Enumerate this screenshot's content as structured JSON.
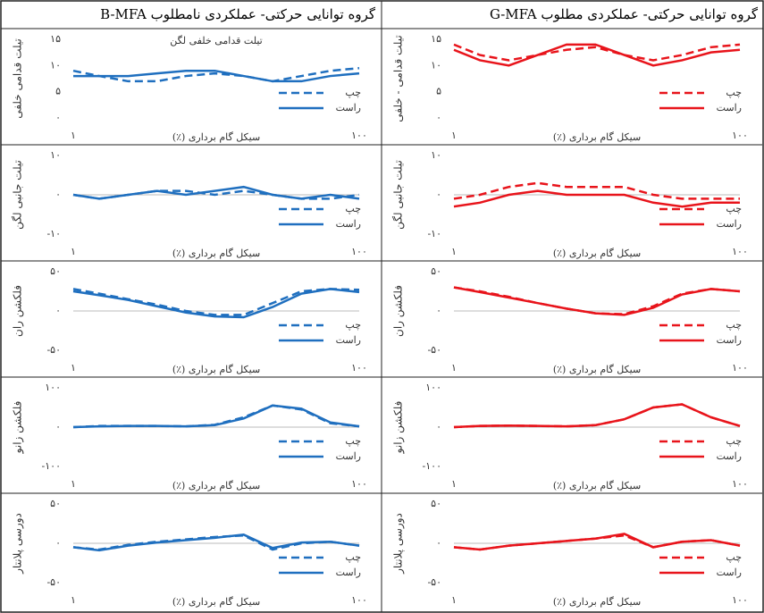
{
  "headers": [
    "گروه توانایی حرکتی- عملکردی نامطلوب B-MFA",
    "گروه توانایی حرکتی- عملکردی مطلوب G-MFA"
  ],
  "chart_data": [
    {
      "type": "line",
      "title": "تیلت قدامی خلفی لگن",
      "ylabel": "تیلت قدامی خلفی",
      "xlabel": "سیکل گام برداری (٪)",
      "xlim": [
        1,
        100
      ],
      "xticks": [
        {
          "value": 1,
          "label": "۱"
        },
        {
          "value": 100,
          "label": "۱۰۰"
        }
      ],
      "ylim": [
        0,
        15
      ],
      "yticks": [
        {
          "value": 0,
          "label": "۰"
        },
        {
          "value": 5,
          "label": "۵"
        },
        {
          "value": 10,
          "label": "۱۰"
        },
        {
          "value": 15,
          "label": "۱۵"
        }
      ],
      "x": [
        1,
        10,
        20,
        30,
        40,
        50,
        60,
        70,
        80,
        90,
        100
      ],
      "series": [
        {
          "name": "چپ",
          "color": "#1f6fbf",
          "dash": true,
          "values": [
            9,
            8,
            7,
            7,
            8,
            8.5,
            8,
            7,
            8,
            9,
            9.5
          ]
        },
        {
          "name": "راست",
          "color": "#1f6fbf",
          "dash": false,
          "values": [
            8,
            8,
            8,
            8.5,
            9,
            9,
            8,
            7,
            7,
            8,
            8.5
          ]
        }
      ]
    },
    {
      "type": "line",
      "ylabel": "تیلت قدامی - خلفی",
      "xlabel": "سیکل گام برداری (٪)",
      "xlim": [
        1,
        100
      ],
      "xticks": [
        {
          "value": 1,
          "label": "۱"
        },
        {
          "value": 100,
          "label": "۱۰۰"
        }
      ],
      "ylim": [
        0,
        15
      ],
      "yticks": [
        {
          "value": 0,
          "label": "۰"
        },
        {
          "value": 5,
          "label": "۵"
        },
        {
          "value": 10,
          "label": "۱۰"
        },
        {
          "value": 15,
          "label": "۱۵"
        }
      ],
      "x": [
        1,
        10,
        20,
        30,
        40,
        50,
        60,
        70,
        80,
        90,
        100
      ],
      "series": [
        {
          "name": "چپ",
          "color": "#e8141b",
          "dash": true,
          "values": [
            14,
            12,
            11,
            12,
            13,
            13.5,
            12,
            11,
            12,
            13.5,
            14
          ]
        },
        {
          "name": "راست",
          "color": "#e8141b",
          "dash": false,
          "values": [
            13,
            11,
            10,
            12,
            14,
            14,
            12,
            10,
            11,
            12.5,
            13
          ]
        }
      ]
    },
    {
      "type": "line",
      "ylabel": "تیلت جانبی لگن",
      "xlabel": "سیکل گام برداری (٪)",
      "xlim": [
        1,
        100
      ],
      "xticks": [
        {
          "value": 1,
          "label": "۱"
        },
        {
          "value": 100,
          "label": "۱۰۰"
        }
      ],
      "ylim": [
        -10,
        10
      ],
      "yticks": [
        {
          "value": -10,
          "label": "-۱۰"
        },
        {
          "value": 0,
          "label": "۰"
        },
        {
          "value": 10,
          "label": "۱۰"
        }
      ],
      "x": [
        1,
        10,
        20,
        30,
        40,
        50,
        60,
        70,
        80,
        90,
        100
      ],
      "series": [
        {
          "name": "چپ",
          "color": "#1f6fbf",
          "dash": true,
          "values": [
            0,
            -1,
            0,
            1,
            1,
            0,
            1,
            0,
            -1,
            -1,
            0
          ]
        },
        {
          "name": "راست",
          "color": "#1f6fbf",
          "dash": false,
          "values": [
            0,
            -1,
            0,
            1,
            0,
            1,
            2,
            0,
            -1,
            0,
            -1
          ]
        }
      ]
    },
    {
      "type": "line",
      "ylabel": "تیلت جانبی لگن",
      "xlabel": "سیکل گام برداری (٪)",
      "xlim": [
        1,
        100
      ],
      "xticks": [
        {
          "value": 1,
          "label": "۱"
        },
        {
          "value": 100,
          "label": "۱۰۰"
        }
      ],
      "ylim": [
        -10,
        10
      ],
      "yticks": [
        {
          "value": -10,
          "label": "-۱۰"
        },
        {
          "value": 0,
          "label": "۰"
        },
        {
          "value": 10,
          "label": "۱۰"
        }
      ],
      "x": [
        1,
        10,
        20,
        30,
        40,
        50,
        60,
        70,
        80,
        90,
        100
      ],
      "series": [
        {
          "name": "چپ",
          "color": "#e8141b",
          "dash": true,
          "values": [
            -1,
            0,
            2,
            3,
            2,
            2,
            2,
            0,
            -1,
            -1,
            -1
          ]
        },
        {
          "name": "راست",
          "color": "#e8141b",
          "dash": false,
          "values": [
            -3,
            -2,
            0,
            1,
            0,
            0,
            0,
            -2,
            -3,
            -2,
            -2
          ]
        }
      ]
    },
    {
      "type": "line",
      "ylabel": "فلکشن ران",
      "xlabel": "سیکل گام برداری (٪)",
      "xlim": [
        1,
        100
      ],
      "xticks": [
        {
          "value": 1,
          "label": "۱"
        },
        {
          "value": 100,
          "label": "۱۰۰"
        }
      ],
      "ylim": [
        -50,
        50
      ],
      "yticks": [
        {
          "value": -50,
          "label": "-۵۰"
        },
        {
          "value": 0,
          "label": "۰"
        },
        {
          "value": 50,
          "label": "۵۰"
        }
      ],
      "x": [
        1,
        10,
        20,
        30,
        40,
        50,
        60,
        70,
        80,
        90,
        100
      ],
      "series": [
        {
          "name": "چپ",
          "color": "#1f6fbf",
          "dash": true,
          "values": [
            28,
            22,
            15,
            8,
            0,
            -5,
            -5,
            10,
            25,
            28,
            27
          ]
        },
        {
          "name": "راست",
          "color": "#1f6fbf",
          "dash": false,
          "values": [
            25,
            20,
            14,
            6,
            -2,
            -7,
            -8,
            5,
            22,
            28,
            24
          ]
        }
      ]
    },
    {
      "type": "line",
      "ylabel": "فلکشن ران",
      "xlabel": "سیکل گام برداری (٪)",
      "xlim": [
        1,
        100
      ],
      "xticks": [
        {
          "value": 1,
          "label": "۱"
        },
        {
          "value": 100,
          "label": "۱۰۰"
        }
      ],
      "ylim": [
        -50,
        50
      ],
      "yticks": [
        {
          "value": -50,
          "label": "-۵۰"
        },
        {
          "value": 0,
          "label": "۰"
        },
        {
          "value": 50,
          "label": "۵۰"
        }
      ],
      "x": [
        1,
        10,
        20,
        30,
        40,
        50,
        60,
        70,
        80,
        90,
        100
      ],
      "series": [
        {
          "name": "چپ",
          "color": "#e8141b",
          "dash": true,
          "values": [
            30,
            25,
            18,
            10,
            3,
            -3,
            -4,
            6,
            22,
            28,
            25
          ]
        },
        {
          "name": "راست",
          "color": "#e8141b",
          "dash": false,
          "values": [
            30,
            24,
            17,
            10,
            3,
            -3,
            -5,
            4,
            21,
            28,
            25
          ]
        }
      ]
    },
    {
      "type": "line",
      "ylabel": "فلکشن زانو",
      "xlabel": "سیکل گام برداری (٪)",
      "xlim": [
        1,
        100
      ],
      "xticks": [
        {
          "value": 1,
          "label": "۱"
        },
        {
          "value": 100,
          "label": "۱۰۰"
        }
      ],
      "ylim": [
        -100,
        100
      ],
      "yticks": [
        {
          "value": -100,
          "label": "-۱۰۰"
        },
        {
          "value": 0,
          "label": "۰"
        },
        {
          "value": 100,
          "label": "۱۰۰"
        }
      ],
      "x": [
        1,
        10,
        20,
        30,
        40,
        50,
        60,
        70,
        80,
        90,
        100
      ],
      "series": [
        {
          "name": "چپ",
          "color": "#1f6fbf",
          "dash": true,
          "values": [
            0,
            3,
            3,
            3,
            2,
            6,
            25,
            55,
            45,
            10,
            2
          ]
        },
        {
          "name": "راست",
          "color": "#1f6fbf",
          "dash": false,
          "values": [
            0,
            2,
            3,
            3,
            2,
            5,
            22,
            55,
            47,
            12,
            2
          ]
        }
      ]
    },
    {
      "type": "line",
      "ylabel": "فلکشن زانو",
      "xlabel": "سیکل گام برداری (٪)",
      "xlim": [
        1,
        100
      ],
      "xticks": [
        {
          "value": 1,
          "label": "۱"
        },
        {
          "value": 100,
          "label": "۱۰۰"
        }
      ],
      "ylim": [
        -100,
        100
      ],
      "yticks": [
        {
          "value": -100,
          "label": "-۱۰۰"
        },
        {
          "value": 0,
          "label": "۰"
        },
        {
          "value": 100,
          "label": "۱۰۰"
        }
      ],
      "x": [
        1,
        10,
        20,
        30,
        40,
        50,
        60,
        70,
        80,
        90,
        100
      ],
      "series": [
        {
          "name": "چپ",
          "color": "#e8141b",
          "dash": true,
          "values": [
            0,
            3,
            4,
            3,
            2,
            5,
            20,
            50,
            58,
            25,
            3
          ]
        },
        {
          "name": "راست",
          "color": "#e8141b",
          "dash": false,
          "values": [
            0,
            3,
            4,
            3,
            2,
            5,
            20,
            50,
            58,
            25,
            3
          ]
        }
      ]
    },
    {
      "type": "line",
      "ylabel": "دورسی پلانتار",
      "xlabel": "سیکل گام برداری (٪)",
      "xlim": [
        1,
        100
      ],
      "xticks": [
        {
          "value": 1,
          "label": "۱"
        },
        {
          "value": 100,
          "label": "۱۰۰"
        }
      ],
      "ylim": [
        -50,
        50
      ],
      "yticks": [
        {
          "value": -50,
          "label": "-۵۰"
        },
        {
          "value": 0,
          "label": "۰"
        },
        {
          "value": 50,
          "label": "۵۰"
        }
      ],
      "x": [
        1,
        10,
        20,
        30,
        40,
        50,
        60,
        70,
        80,
        90,
        100
      ],
      "series": [
        {
          "name": "چپ",
          "color": "#1f6fbf",
          "dash": true,
          "values": [
            -5,
            -8,
            -2,
            2,
            5,
            8,
            10,
            -8,
            0,
            2,
            -3
          ]
        },
        {
          "name": "راست",
          "color": "#1f6fbf",
          "dash": false,
          "values": [
            -5,
            -9,
            -3,
            1,
            4,
            7,
            11,
            -6,
            1,
            2,
            -3
          ]
        }
      ]
    },
    {
      "type": "line",
      "ylabel": "دورسی پلانتار",
      "xlabel": "سیکل گام برداری (٪)",
      "xlim": [
        1,
        100
      ],
      "xticks": [
        {
          "value": 1,
          "label": "۱"
        },
        {
          "value": 100,
          "label": "۱۰۰"
        }
      ],
      "ylim": [
        -50,
        50
      ],
      "yticks": [
        {
          "value": -50,
          "label": "-۵۰"
        },
        {
          "value": 0,
          "label": "۰"
        },
        {
          "value": 50,
          "label": "۵۰"
        }
      ],
      "x": [
        1,
        10,
        20,
        30,
        40,
        50,
        60,
        70,
        80,
        90,
        100
      ],
      "series": [
        {
          "name": "چپ",
          "color": "#e8141b",
          "dash": true,
          "values": [
            -5,
            -8,
            -3,
            0,
            3,
            6,
            10,
            -5,
            2,
            4,
            -3
          ]
        },
        {
          "name": "راست",
          "color": "#e8141b",
          "dash": false,
          "values": [
            -5,
            -8,
            -3,
            0,
            3,
            6,
            12,
            -5,
            2,
            4,
            -3
          ]
        }
      ]
    }
  ]
}
